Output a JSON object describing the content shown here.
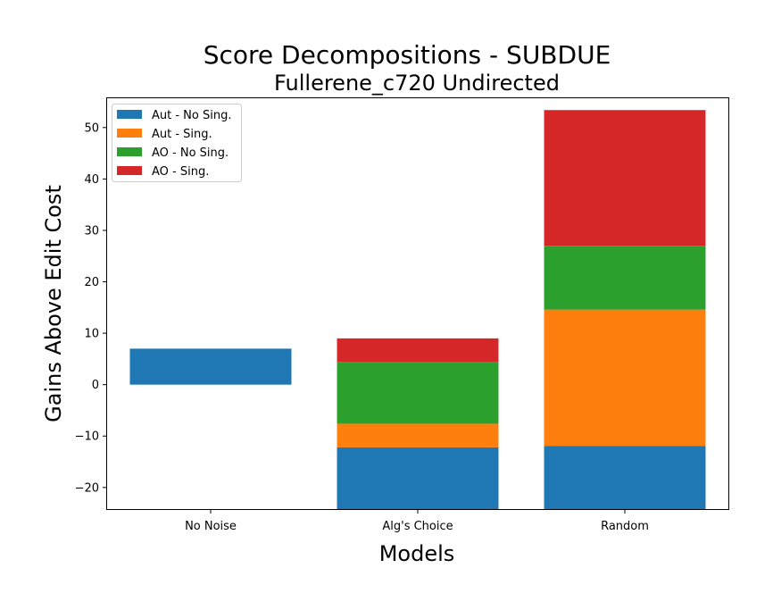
{
  "chart_data": {
    "type": "bar",
    "stacked": true,
    "title": "Score Decompositions - SUBDUE",
    "subtitle": "Fullerene_c720 Undirected",
    "xlabel": "Models",
    "ylabel": "Gains Above Edit Cost",
    "categories": [
      "No Noise",
      "Alg's Choice",
      "Random"
    ],
    "ylim": [
      -24.2,
      55.7
    ],
    "yticks": [
      -20,
      -10,
      0,
      10,
      20,
      30,
      40,
      50
    ],
    "legend_position": "upper-left",
    "grid": false,
    "series": [
      {
        "name": "Aut - No Sing.",
        "color": "#1f77b4",
        "segments": [
          [
            0,
            7
          ],
          [
            -24.2,
            -12.2
          ],
          [
            -24.2,
            -11.9
          ]
        ]
      },
      {
        "name": "Aut - Sing.",
        "color": "#ff7f0e",
        "segments": [
          null,
          [
            -12.2,
            -7.6
          ],
          [
            -11.9,
            14.6
          ]
        ]
      },
      {
        "name": "AO - No Sing.",
        "color": "#2ca02c",
        "segments": [
          null,
          [
            -7.6,
            4.4
          ],
          [
            14.6,
            27
          ]
        ]
      },
      {
        "name": "AO - Sing.",
        "color": "#d62728",
        "segments": [
          null,
          [
            4.4,
            9
          ],
          [
            27,
            53.4
          ]
        ]
      }
    ]
  }
}
